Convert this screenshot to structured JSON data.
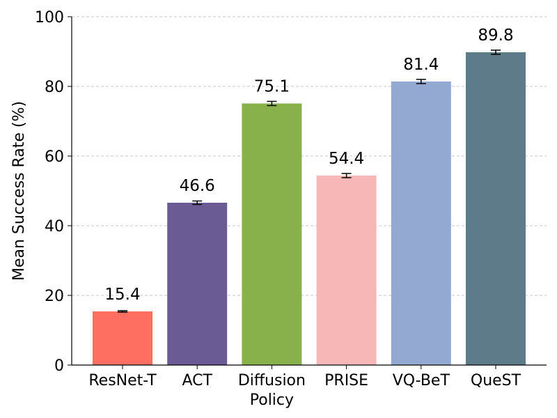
{
  "chart_data": {
    "type": "bar",
    "title": "",
    "xlabel": "",
    "ylabel": "Mean Success Rate (%)",
    "ylim": [
      0,
      100
    ],
    "yticks": [
      0,
      20,
      40,
      60,
      80,
      100
    ],
    "grid": "horizontal dashed at y ticks",
    "categories": [
      [
        "ResNet-T"
      ],
      [
        "ACT"
      ],
      [
        "Diffusion",
        "Policy"
      ],
      [
        "PRISE"
      ],
      [
        "VQ-BeT"
      ],
      [
        "QueST"
      ]
    ],
    "values": [
      15.4,
      46.6,
      75.1,
      54.4,
      81.4,
      89.8
    ],
    "value_labels": [
      "15.4",
      "46.6",
      "75.1",
      "54.4",
      "81.4",
      "89.8"
    ],
    "error": [
      0.2,
      0.5,
      0.6,
      0.6,
      0.6,
      0.6
    ],
    "colors": [
      "#ff6f61",
      "#6b5b95",
      "#88b04b",
      "#f7b7b7",
      "#94a9d1",
      "#5d7b88"
    ]
  }
}
